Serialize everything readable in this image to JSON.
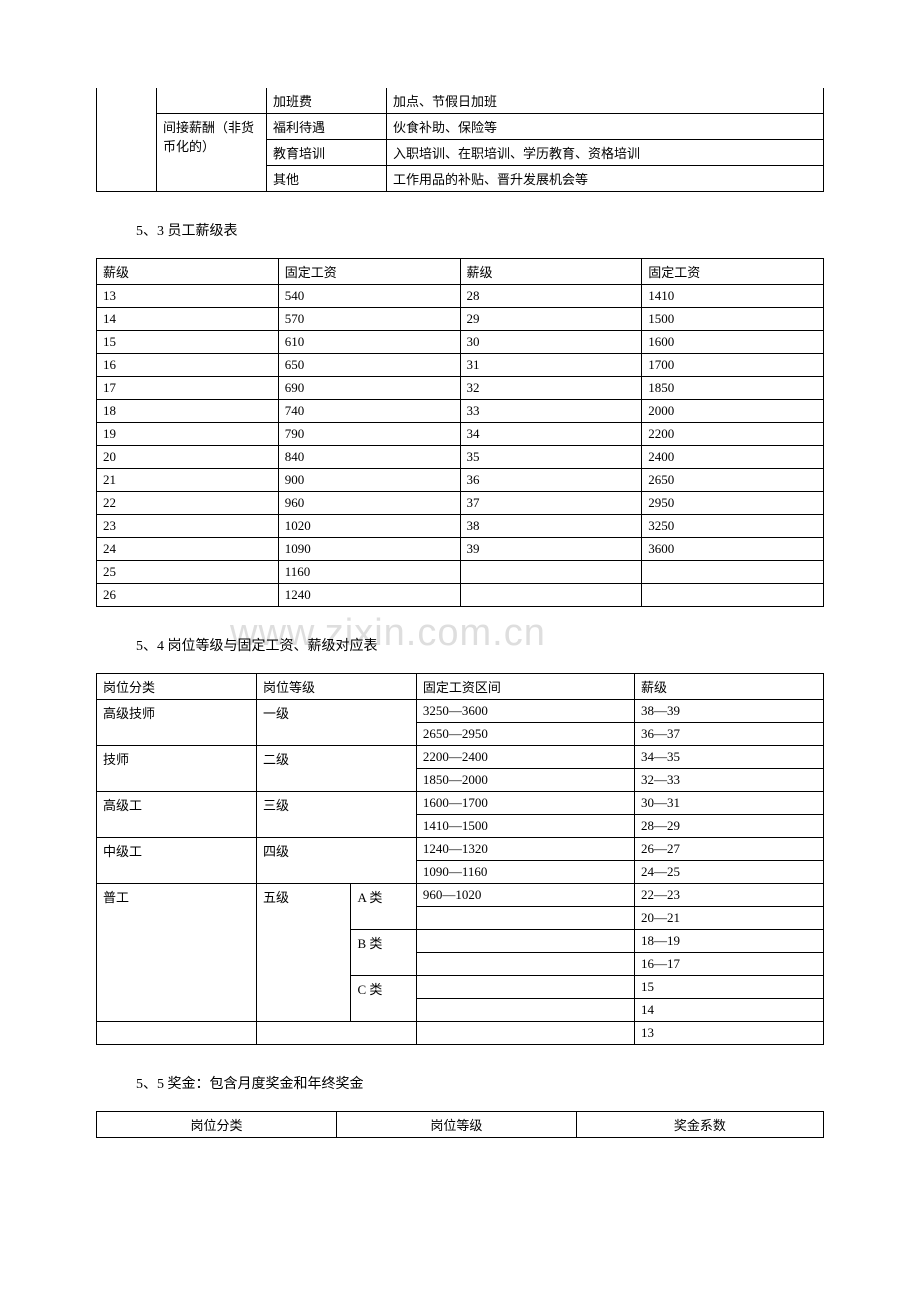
{
  "table1": {
    "rows": [
      [
        "",
        "",
        "加班费",
        "加点、节假日加班"
      ],
      [
        "",
        "间接薪酬（非货",
        "福利待遇",
        "伙食补助、保险等"
      ],
      [
        "",
        "币化的）",
        "教育培训",
        "入职培训、在职培训、学历教育、资格培训"
      ],
      [
        "",
        "",
        "其他",
        "工作用品的补贴、晋升发展机会等"
      ]
    ]
  },
  "section53": {
    "title": "5、3 员工薪级表"
  },
  "table2": {
    "headers": [
      "薪级",
      "固定工资",
      "薪级",
      "固定工资"
    ],
    "rows": [
      [
        "13",
        "540",
        "28",
        "1410"
      ],
      [
        "14",
        "570",
        "29",
        "1500"
      ],
      [
        "15",
        "610",
        "30",
        "1600"
      ],
      [
        "16",
        "650",
        "31",
        "1700"
      ],
      [
        "17",
        "690",
        "32",
        "1850"
      ],
      [
        "18",
        "740",
        "33",
        "2000"
      ],
      [
        "19",
        "790",
        "34",
        "2200"
      ],
      [
        "20",
        "840",
        "35",
        "2400"
      ],
      [
        "21",
        "900",
        "36",
        "2650"
      ],
      [
        "22",
        "960",
        "37",
        "2950"
      ],
      [
        "23",
        "1020",
        "38",
        "3250"
      ],
      [
        "24",
        "1090",
        "39",
        "3600"
      ],
      [
        "25",
        "1160",
        "",
        ""
      ],
      [
        "26",
        "1240",
        "",
        ""
      ]
    ]
  },
  "watermark": "www.zixin.com.cn",
  "section54": {
    "title": "5、4 岗位等级与固定工资、薪级对应表"
  },
  "table3": {
    "headers": [
      "岗位分类",
      "岗位等级",
      "固定工资区间",
      "薪级"
    ],
    "rows": [
      {
        "c0": "高级技师",
        "c1": "一级",
        "c1rs": 2,
        "sub": false,
        "c2": "3250—3600",
        "c3": "38—39"
      },
      {
        "c0": "",
        "c1": "",
        "sub": false,
        "c2": "2650—2950",
        "c3": "36—37"
      },
      {
        "c0": "技师",
        "c1": "二级",
        "c1rs": 2,
        "sub": false,
        "c2": "2200—2400",
        "c3": "34—35"
      },
      {
        "c0": "",
        "c1": "",
        "sub": false,
        "c2": "1850—2000",
        "c3": "32—33"
      },
      {
        "c0": "高级工",
        "c1": "三级",
        "c1rs": 2,
        "sub": false,
        "c2": "1600—1700",
        "c3": "30—31"
      },
      {
        "c0": "",
        "c1": "",
        "sub": false,
        "c2": "1410—1500",
        "c3": "28—29"
      },
      {
        "c0": "中级工",
        "c1": "四级",
        "c1rs": 2,
        "sub": false,
        "c2": "1240—1320",
        "c3": "26—27"
      },
      {
        "c0": "",
        "c1": "",
        "sub": false,
        "c2": "1090—1160",
        "c3": "24—25"
      },
      {
        "c0": "普工",
        "c0rs": 6,
        "c1": "五级",
        "c1rs": 6,
        "sub": "A 类",
        "subrs": 2,
        "c2": "960—1020",
        "c3": "22—23"
      },
      {
        "c2": "",
        "c3": "20—21"
      },
      {
        "sub": "B 类",
        "subrs": 2,
        "c2": "",
        "c3": "18—19"
      },
      {
        "c2": "",
        "c3": "16—17"
      },
      {
        "sub": "C 类",
        "subrs": 2,
        "c2": "",
        "c3": "15"
      },
      {
        "c2": "",
        "c3": "14"
      },
      {
        "c2": "",
        "c3": "13",
        "extra": true
      }
    ]
  },
  "section55": {
    "title": "5、5 奖金：包含月度奖金和年终奖金"
  },
  "table4": {
    "headers": [
      "岗位分类",
      "岗位等级",
      "奖金系数"
    ]
  }
}
